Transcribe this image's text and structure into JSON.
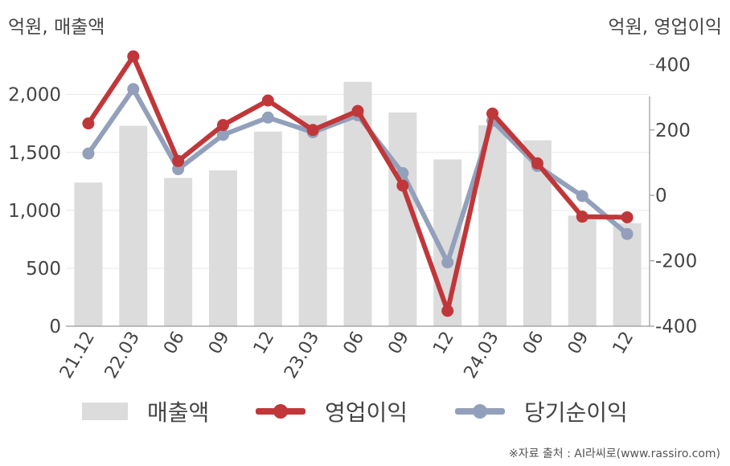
{
  "header": {
    "left_unit": "억원, 매출액",
    "right_unit": "억원, 영업이익"
  },
  "legend": {
    "revenue": "매출액",
    "operating_profit": "영업이익",
    "net_income": "당기순이익"
  },
  "source": "※자료 출처 : AI라씨로(www.rassiro.com)",
  "colors": {
    "revenue": "#dcdcdc",
    "operating_profit": "#c0373a",
    "net_income": "#93a0bb",
    "axis": "#999999",
    "grid": "#e8e8e8",
    "text": "#444444"
  },
  "chart_data": {
    "type": "bar+line",
    "categories": [
      "21.12",
      "22.03",
      "06",
      "09",
      "12",
      "23.03",
      "06",
      "09",
      "12",
      "24.03",
      "06",
      "09",
      "12"
    ],
    "left_axis": {
      "ylim": [
        0,
        2400
      ],
      "ticks": [
        0,
        500,
        1000,
        1500,
        2000
      ],
      "tick_labels": [
        "0",
        "500",
        "1,000",
        "1,500",
        "2,000"
      ]
    },
    "right_axis": {
      "ylim": [
        -400,
        450
      ],
      "ticks": [
        -400,
        -200,
        0,
        200,
        400
      ],
      "tick_labels": [
        "-400",
        "-200",
        "0",
        "200",
        "400"
      ]
    },
    "grid": true,
    "legend_position": "bottom",
    "series": [
      {
        "name": "매출액",
        "type": "bar",
        "axis": "left",
        "values": [
          1240,
          1730,
          1280,
          1345,
          1680,
          1820,
          2110,
          1845,
          1440,
          1735,
          1605,
          955,
          890
        ]
      },
      {
        "name": "영업이익",
        "type": "line",
        "axis": "right",
        "values": [
          220,
          425,
          105,
          215,
          290,
          200,
          258,
          30,
          -353,
          250,
          98,
          -65,
          -67
        ]
      },
      {
        "name": "당기순이익",
        "type": "line",
        "axis": "right",
        "values": [
          128,
          325,
          80,
          185,
          238,
          193,
          245,
          68,
          -205,
          228,
          90,
          -2,
          -118
        ]
      }
    ]
  }
}
